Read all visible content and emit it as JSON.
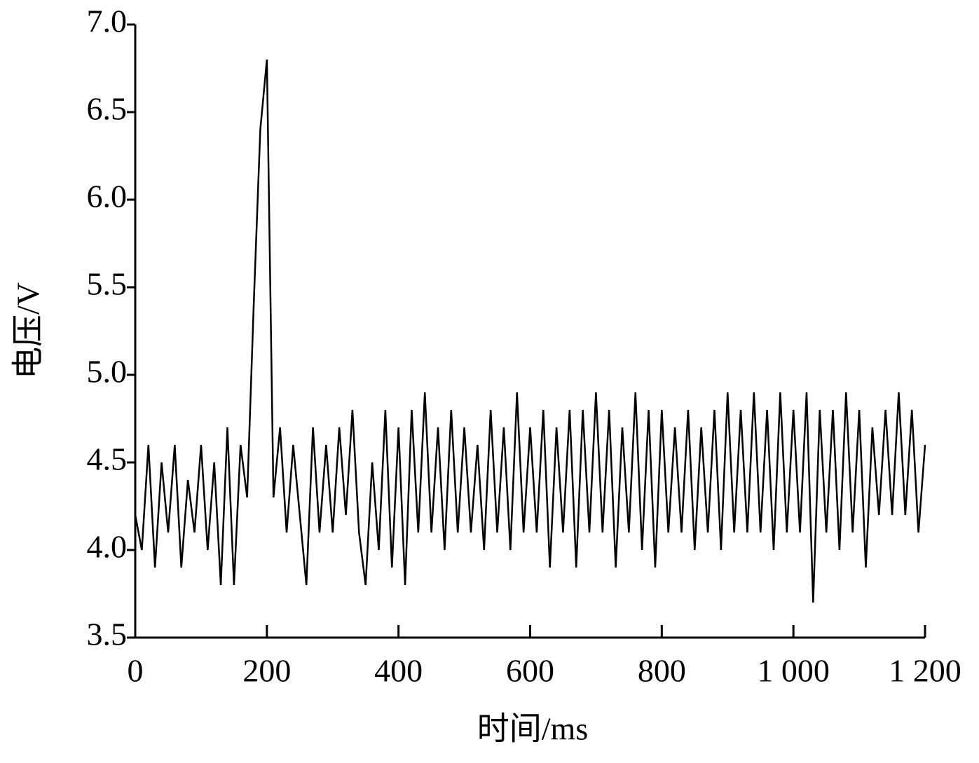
{
  "chart_data": {
    "type": "line",
    "xlabel": "时间/ms",
    "ylabel": "电压/V",
    "color": "#000000",
    "x": [
      0,
      10,
      20,
      30,
      40,
      50,
      60,
      70,
      80,
      90,
      100,
      110,
      120,
      130,
      140,
      150,
      160,
      170,
      180,
      190,
      200,
      210,
      220,
      230,
      240,
      250,
      260,
      270,
      280,
      290,
      300,
      310,
      320,
      330,
      340,
      350,
      360,
      370,
      380,
      390,
      400,
      410,
      420,
      430,
      440,
      450,
      460,
      470,
      480,
      490,
      500,
      510,
      520,
      530,
      540,
      550,
      560,
      570,
      580,
      590,
      600,
      610,
      620,
      630,
      640,
      650,
      660,
      670,
      680,
      690,
      700,
      710,
      720,
      730,
      740,
      750,
      760,
      770,
      780,
      790,
      800,
      810,
      820,
      830,
      840,
      850,
      860,
      870,
      880,
      890,
      900,
      910,
      920,
      930,
      940,
      950,
      960,
      970,
      980,
      990,
      1000,
      1010,
      1020,
      1030,
      1040,
      1050,
      1060,
      1070,
      1080,
      1090,
      1100,
      1110,
      1120,
      1130,
      1140,
      1150,
      1160,
      1170,
      1180,
      1190,
      1200
    ],
    "values": [
      4.2,
      4.0,
      4.6,
      3.9,
      4.5,
      4.1,
      4.6,
      3.9,
      4.4,
      4.1,
      4.6,
      4.0,
      4.5,
      3.8,
      4.7,
      3.8,
      4.6,
      4.3,
      5.4,
      6.4,
      6.8,
      4.3,
      4.7,
      4.1,
      4.6,
      4.2,
      3.8,
      4.7,
      4.1,
      4.6,
      4.1,
      4.7,
      4.2,
      4.8,
      4.1,
      3.8,
      4.5,
      4.0,
      4.8,
      3.9,
      4.7,
      3.8,
      4.8,
      4.1,
      4.9,
      4.1,
      4.7,
      4.0,
      4.8,
      4.1,
      4.7,
      4.1,
      4.6,
      4.0,
      4.8,
      4.1,
      4.7,
      4.0,
      4.9,
      4.1,
      4.7,
      4.1,
      4.8,
      3.9,
      4.7,
      4.1,
      4.8,
      3.9,
      4.8,
      4.1,
      4.9,
      4.1,
      4.8,
      3.9,
      4.7,
      4.1,
      4.9,
      4.0,
      4.8,
      3.9,
      4.8,
      4.1,
      4.7,
      4.1,
      4.8,
      4.0,
      4.7,
      4.1,
      4.8,
      4.0,
      4.9,
      4.1,
      4.8,
      4.1,
      4.9,
      4.1,
      4.8,
      4.0,
      4.9,
      4.1,
      4.8,
      4.1,
      4.9,
      3.7,
      4.8,
      4.1,
      4.8,
      4.0,
      4.9,
      4.1,
      4.8,
      3.9,
      4.7,
      4.2,
      4.8,
      4.2,
      4.9,
      4.2,
      4.8,
      4.1,
      4.6
    ],
    "xlim": [
      0,
      1200
    ],
    "xticks": [
      0,
      200,
      400,
      600,
      800,
      {
        "value": 1000,
        "label": "1 000"
      },
      {
        "value": 1200,
        "label": "1 200"
      }
    ],
    "ylim": [
      3.5,
      7.0
    ],
    "yticks": [
      3.5,
      {
        "value": 4.0,
        "label": "4.0"
      },
      4.5,
      {
        "value": 5.0,
        "label": "5.0"
      },
      5.5,
      {
        "value": 6.0,
        "label": "6.0"
      },
      6.5,
      {
        "value": 7.0,
        "label": "7.0"
      }
    ]
  }
}
